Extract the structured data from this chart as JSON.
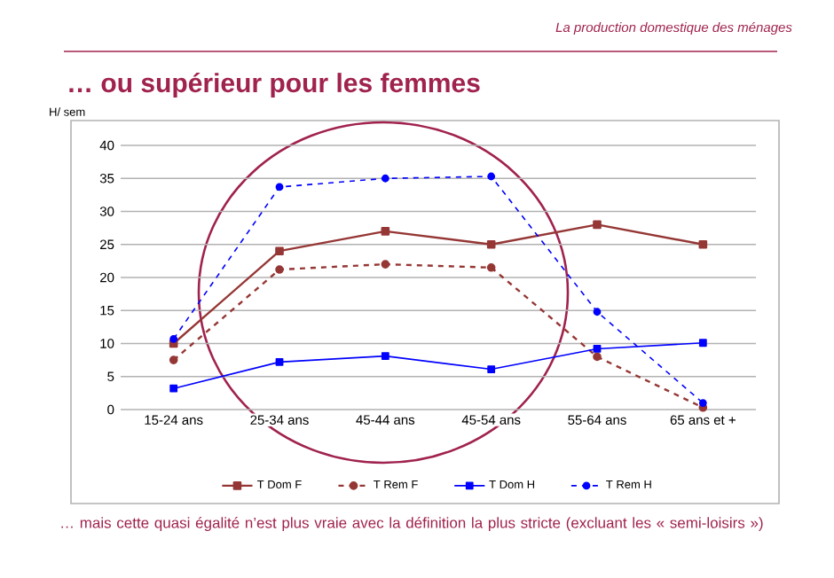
{
  "chart_data": {
    "type": "line",
    "title": "… ou supérieur pour les femmes",
    "subtitle": "La production domestique des ménages",
    "ylabel": "H/ sem",
    "categories": [
      "15-24 ans",
      "25-34 ans",
      "45-44 ans",
      "45-54 ans",
      "55-64 ans",
      "65 ans et +"
    ],
    "series": [
      {
        "name": "T Dom F",
        "color": "#953735",
        "marker": "square",
        "line_style": "solid",
        "values": [
          10,
          24,
          27,
          25,
          28,
          25
        ]
      },
      {
        "name": "T Rem F",
        "color": "#953735",
        "marker": "circle",
        "line_style": "dashed",
        "values": [
          7.5,
          21.2,
          22,
          21.5,
          8,
          0.3
        ]
      },
      {
        "name": "T Dom H",
        "color": "#0000ff",
        "marker": "square",
        "line_style": "solid",
        "values": [
          3.2,
          7.2,
          8.1,
          6.1,
          9.2,
          10.1
        ]
      },
      {
        "name": "T Rem H",
        "color": "#0000ff",
        "marker": "circle",
        "line_style": "dashed",
        "values": [
          10.7,
          33.7,
          35,
          35.3,
          14.8,
          1
        ]
      }
    ],
    "ylim": [
      0,
      40
    ],
    "yticks": [
      0,
      5,
      10,
      15,
      20,
      25,
      30,
      35,
      40
    ],
    "grid": "y",
    "legend": "bottom",
    "annotations": [
      "… mais  cette quasi égalité n’est plus vraie avec la définition la plus stricte (excluant les « semi-loisirs »)"
    ]
  }
}
